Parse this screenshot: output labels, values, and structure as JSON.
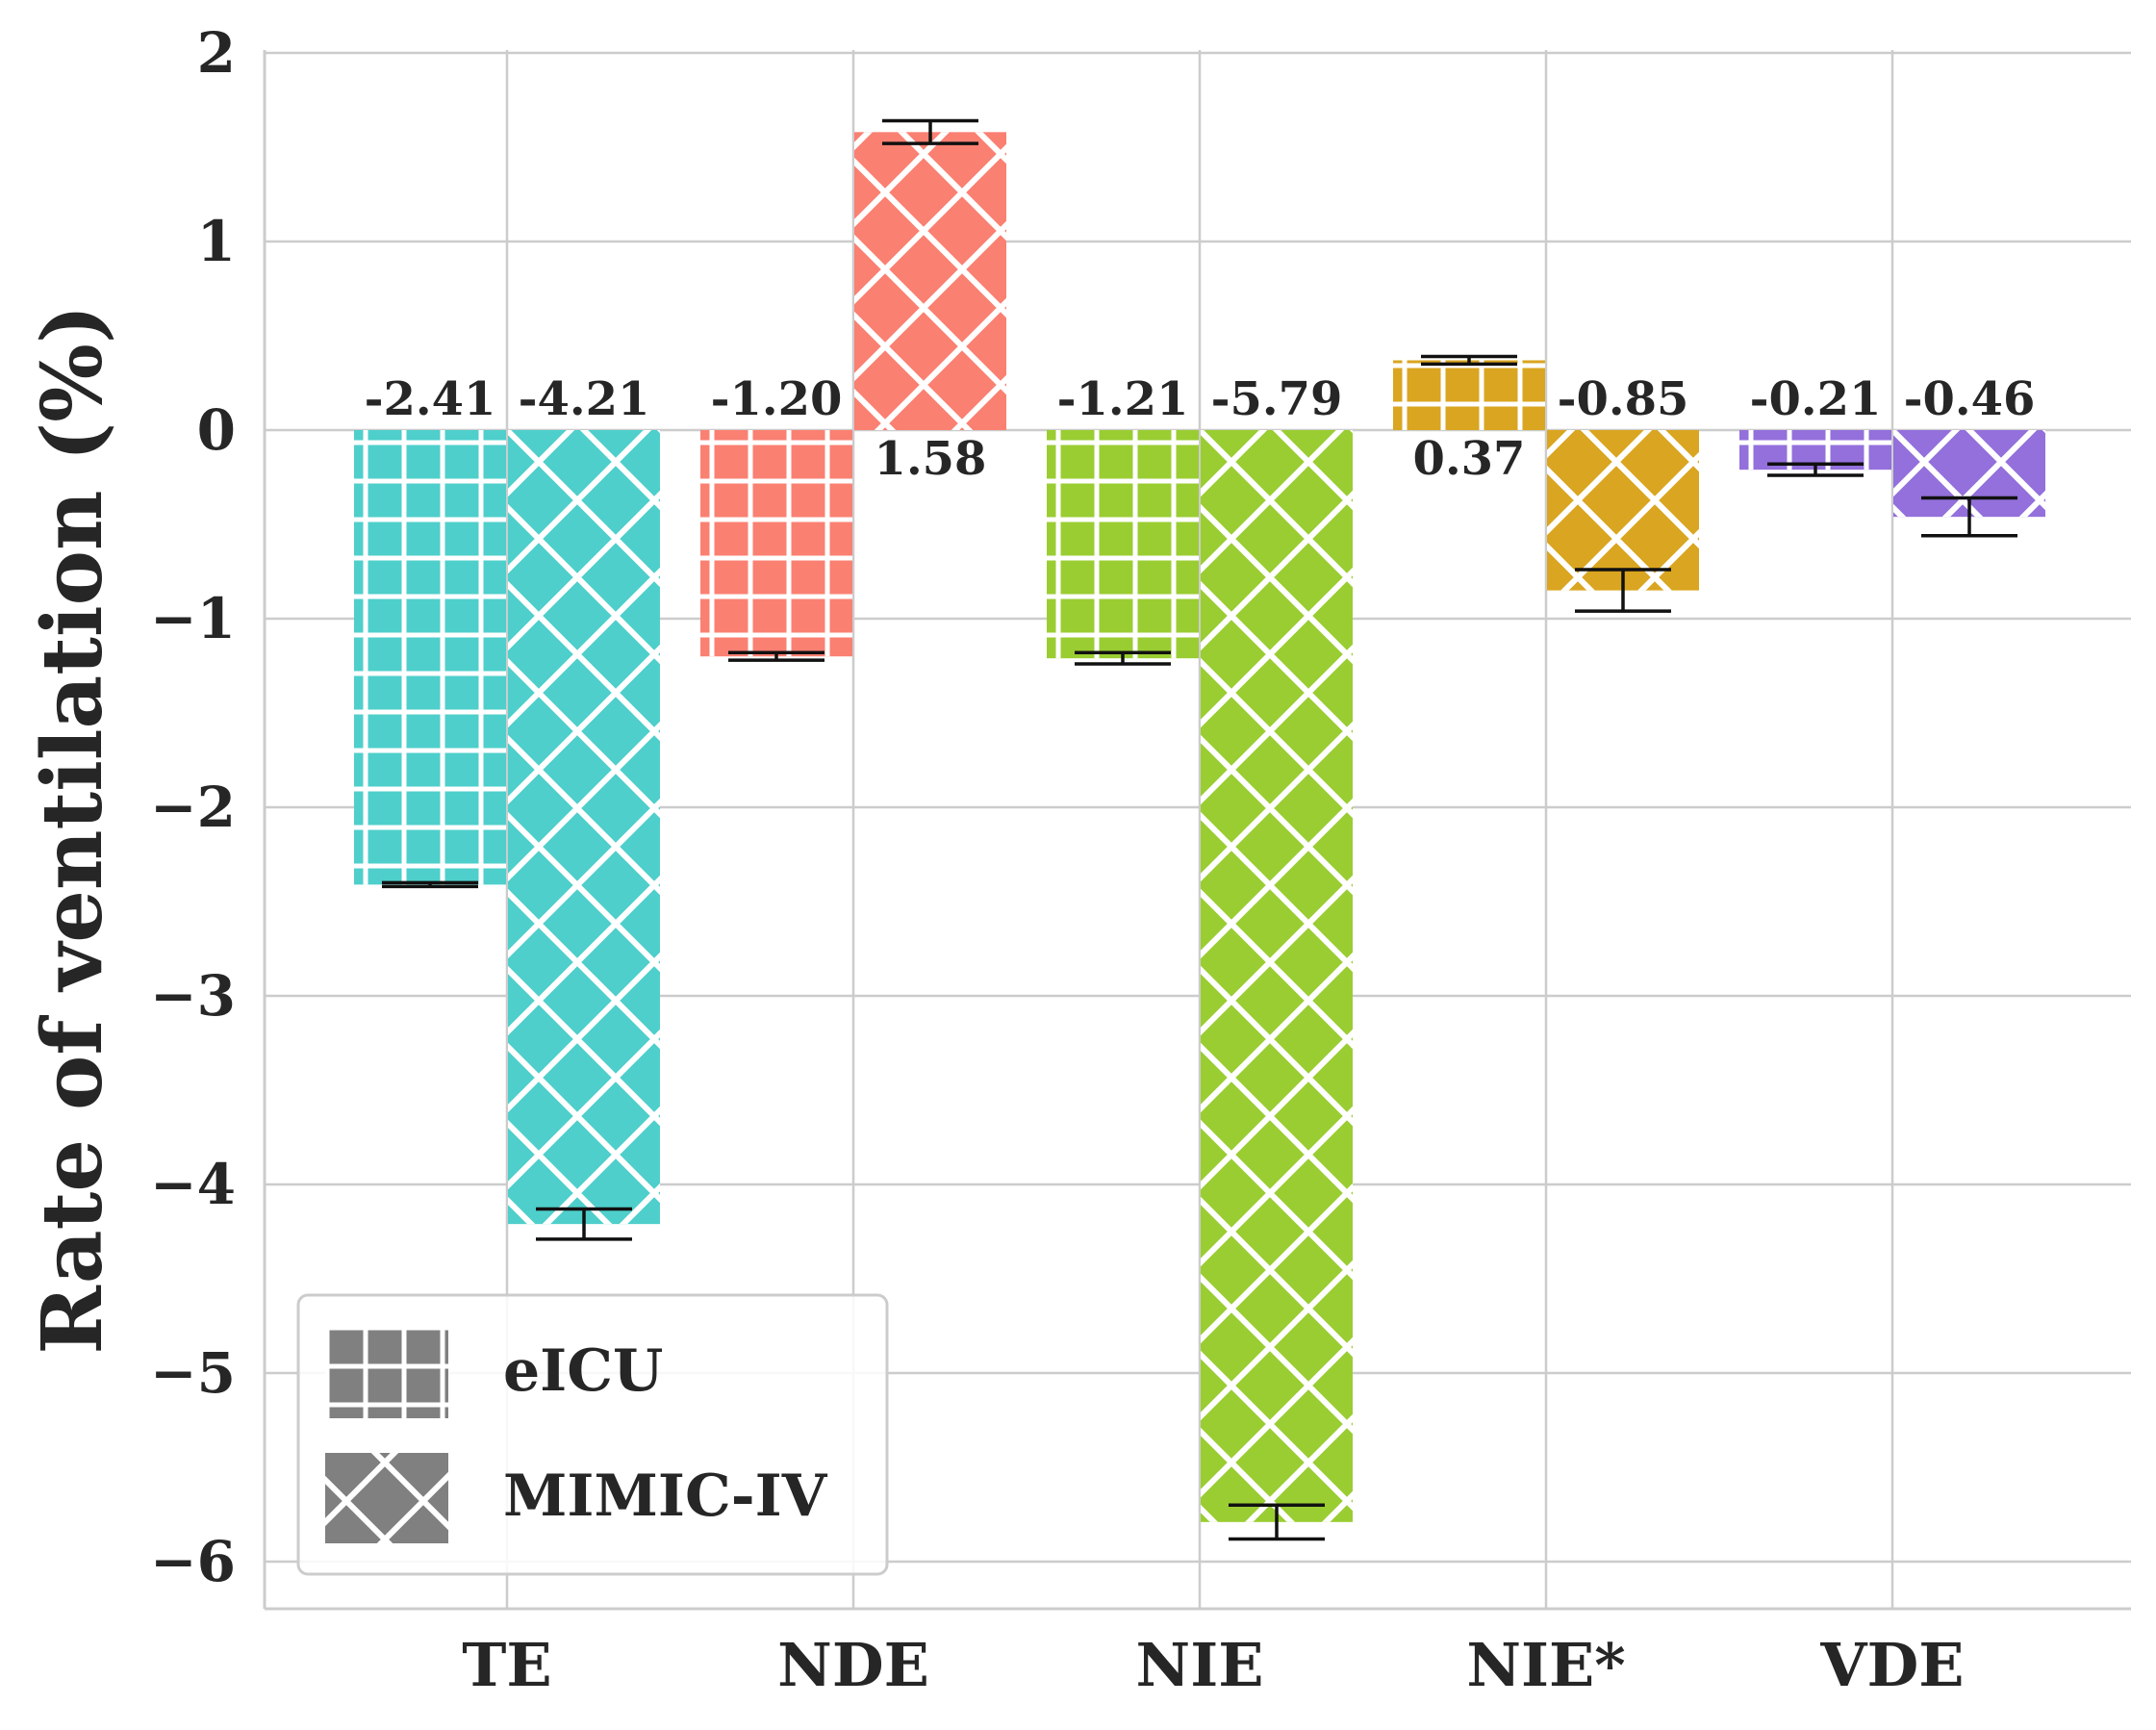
{
  "chart_data": {
    "type": "bar",
    "title": "",
    "xlabel": "",
    "ylabel": "Rate of ventilation (%)",
    "ylim": [
      -6.25,
      2
    ],
    "yticks": [
      2,
      1,
      0,
      -1,
      -2,
      -3,
      -4,
      -5,
      -6
    ],
    "ytick_labels": [
      "2",
      "1",
      "0",
      "−1",
      "−2",
      "−3",
      "−4",
      "−5",
      "−6"
    ],
    "categories": [
      "TE",
      "NDE",
      "NIE",
      "NIE*",
      "VDE"
    ],
    "category_colors": [
      "#4ecfcb",
      "#fa8072",
      "#9acd32",
      "#daa520",
      "#9370db"
    ],
    "grid": true,
    "legend_position": "bottom-left",
    "series": [
      {
        "name": "eICU",
        "hatch": "grid",
        "values": [
          -2.41,
          -1.2,
          -1.21,
          0.37,
          -0.21
        ],
        "labels": [
          "-2.41",
          "-1.20",
          "-1.21",
          "0.37",
          "-0.21"
        ],
        "errors": [
          0.01,
          0.02,
          0.03,
          0.02,
          0.03
        ]
      },
      {
        "name": "MIMIC-IV",
        "hatch": "diamond",
        "values": [
          -4.21,
          1.58,
          -5.79,
          -0.85,
          -0.46
        ],
        "labels": [
          "-4.21",
          "1.58",
          "-5.79",
          "-0.85",
          "-0.46"
        ],
        "errors": [
          0.08,
          0.06,
          0.09,
          0.11,
          0.1
        ]
      }
    ]
  }
}
